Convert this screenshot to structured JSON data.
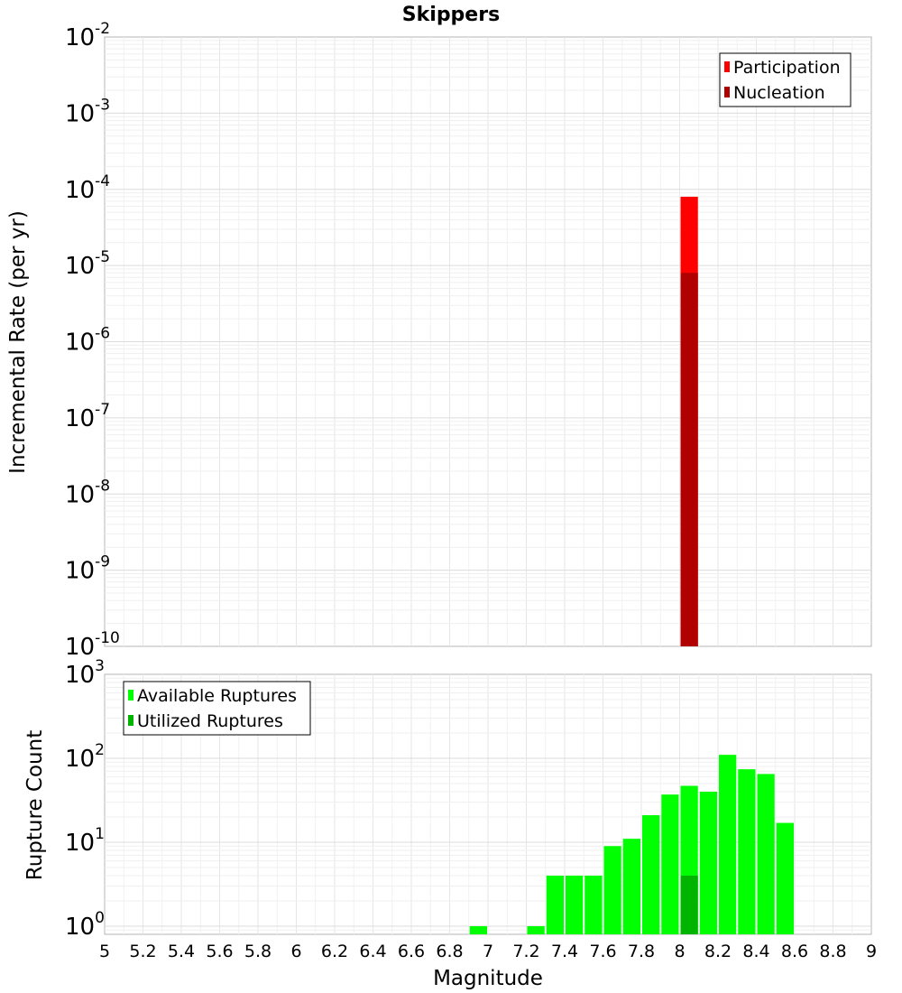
{
  "chart_data": [
    {
      "type": "bar",
      "title": "Skippers",
      "xlabel": "",
      "ylabel": "Incremental Rate (per yr)",
      "yscale": "log",
      "xlim": [
        5,
        9
      ],
      "ylim": [
        1e-10,
        0.01
      ],
      "yticks": [
        {
          "base": "10",
          "exp": "-10"
        },
        {
          "base": "10",
          "exp": "-9"
        },
        {
          "base": "10",
          "exp": "-8"
        },
        {
          "base": "10",
          "exp": "-7"
        },
        {
          "base": "10",
          "exp": "-6"
        },
        {
          "base": "10",
          "exp": "-5"
        },
        {
          "base": "10",
          "exp": "-4"
        },
        {
          "base": "10",
          "exp": "-3"
        },
        {
          "base": "10",
          "exp": "-2"
        }
      ],
      "grid": true,
      "legend_position": "top-right",
      "bin_width": 0.1,
      "series": [
        {
          "name": "Participation",
          "color": "#ff0000",
          "x": [
            8.05
          ],
          "values": [
            8e-05
          ]
        },
        {
          "name": "Nucleation",
          "color": "#b00000",
          "x": [
            8.05
          ],
          "values": [
            8e-06
          ]
        }
      ]
    },
    {
      "type": "bar",
      "title": "",
      "xlabel": "Magnitude",
      "ylabel": "Rupture Count",
      "yscale": "log",
      "xlim": [
        5,
        9
      ],
      "ylim": [
        0.8,
        1000
      ],
      "yticks": [
        {
          "base": "10",
          "exp": "0"
        },
        {
          "base": "10",
          "exp": "1"
        },
        {
          "base": "10",
          "exp": "2"
        },
        {
          "base": "10",
          "exp": "3"
        }
      ],
      "xticks": [
        "5",
        "5.2",
        "5.4",
        "5.6",
        "5.8",
        "6",
        "6.2",
        "6.4",
        "6.6",
        "6.8",
        "7",
        "7.2",
        "7.4",
        "7.6",
        "7.8",
        "8",
        "8.2",
        "8.4",
        "8.6",
        "8.8",
        "9"
      ],
      "grid": true,
      "legend_position": "top-left",
      "bin_width": 0.1,
      "series": [
        {
          "name": "Available Ruptures",
          "color": "#00ff00",
          "x": [
            6.95,
            7.25,
            7.35,
            7.45,
            7.55,
            7.65,
            7.75,
            7.85,
            7.95,
            8.05,
            8.15,
            8.25,
            8.35,
            8.45,
            8.55
          ],
          "values": [
            1,
            1,
            4,
            4,
            4,
            9,
            11,
            21,
            37,
            47,
            40,
            110,
            74,
            65,
            17
          ]
        },
        {
          "name": "Utilized Ruptures",
          "color": "#00b400",
          "x": [
            8.05
          ],
          "values": [
            4
          ]
        }
      ]
    }
  ]
}
